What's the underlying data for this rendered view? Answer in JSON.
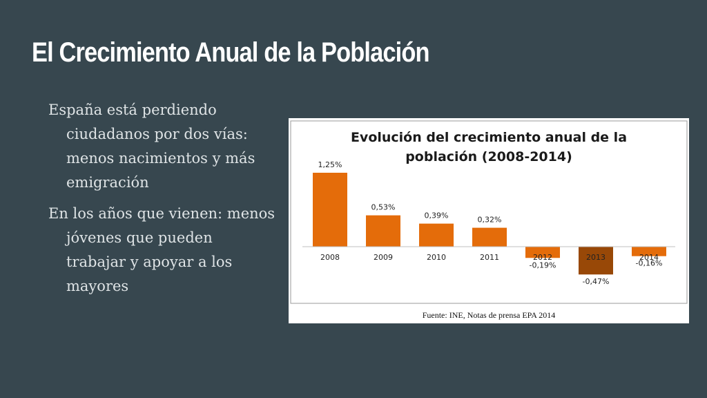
{
  "slide": {
    "title": "El Crecimiento Anual de la Población",
    "bullets": [
      "España está perdiendo ciudadanos por dos vías: menos nacimientos y más emigración",
      "En los años que vienen: menos jóvenes que pueden trabajar y apoyar a los mayores"
    ]
  },
  "colors": {
    "background": "#37474f",
    "bar": "#e46c0a",
    "bar_highlight": "#984807"
  },
  "chart_data": {
    "type": "bar",
    "title_lines": [
      "Evolución del crecimiento anual de la",
      "población (2008-2014)"
    ],
    "categories": [
      "2008",
      "2009",
      "2010",
      "2011",
      "2012",
      "2013",
      "2014"
    ],
    "values": [
      1.25,
      0.53,
      0.39,
      0.32,
      -0.19,
      -0.47,
      -0.16
    ],
    "value_labels": [
      "1,25%",
      "0,53%",
      "0,39%",
      "0,32%",
      "-0,19%",
      "-0,47%",
      "-0,16%"
    ],
    "highlight_category": "2013",
    "ylim": [
      -0.47,
      1.25
    ],
    "grid": false,
    "legend": "none",
    "source": "Fuente: INE, Notas de prensa EPA 2014"
  }
}
